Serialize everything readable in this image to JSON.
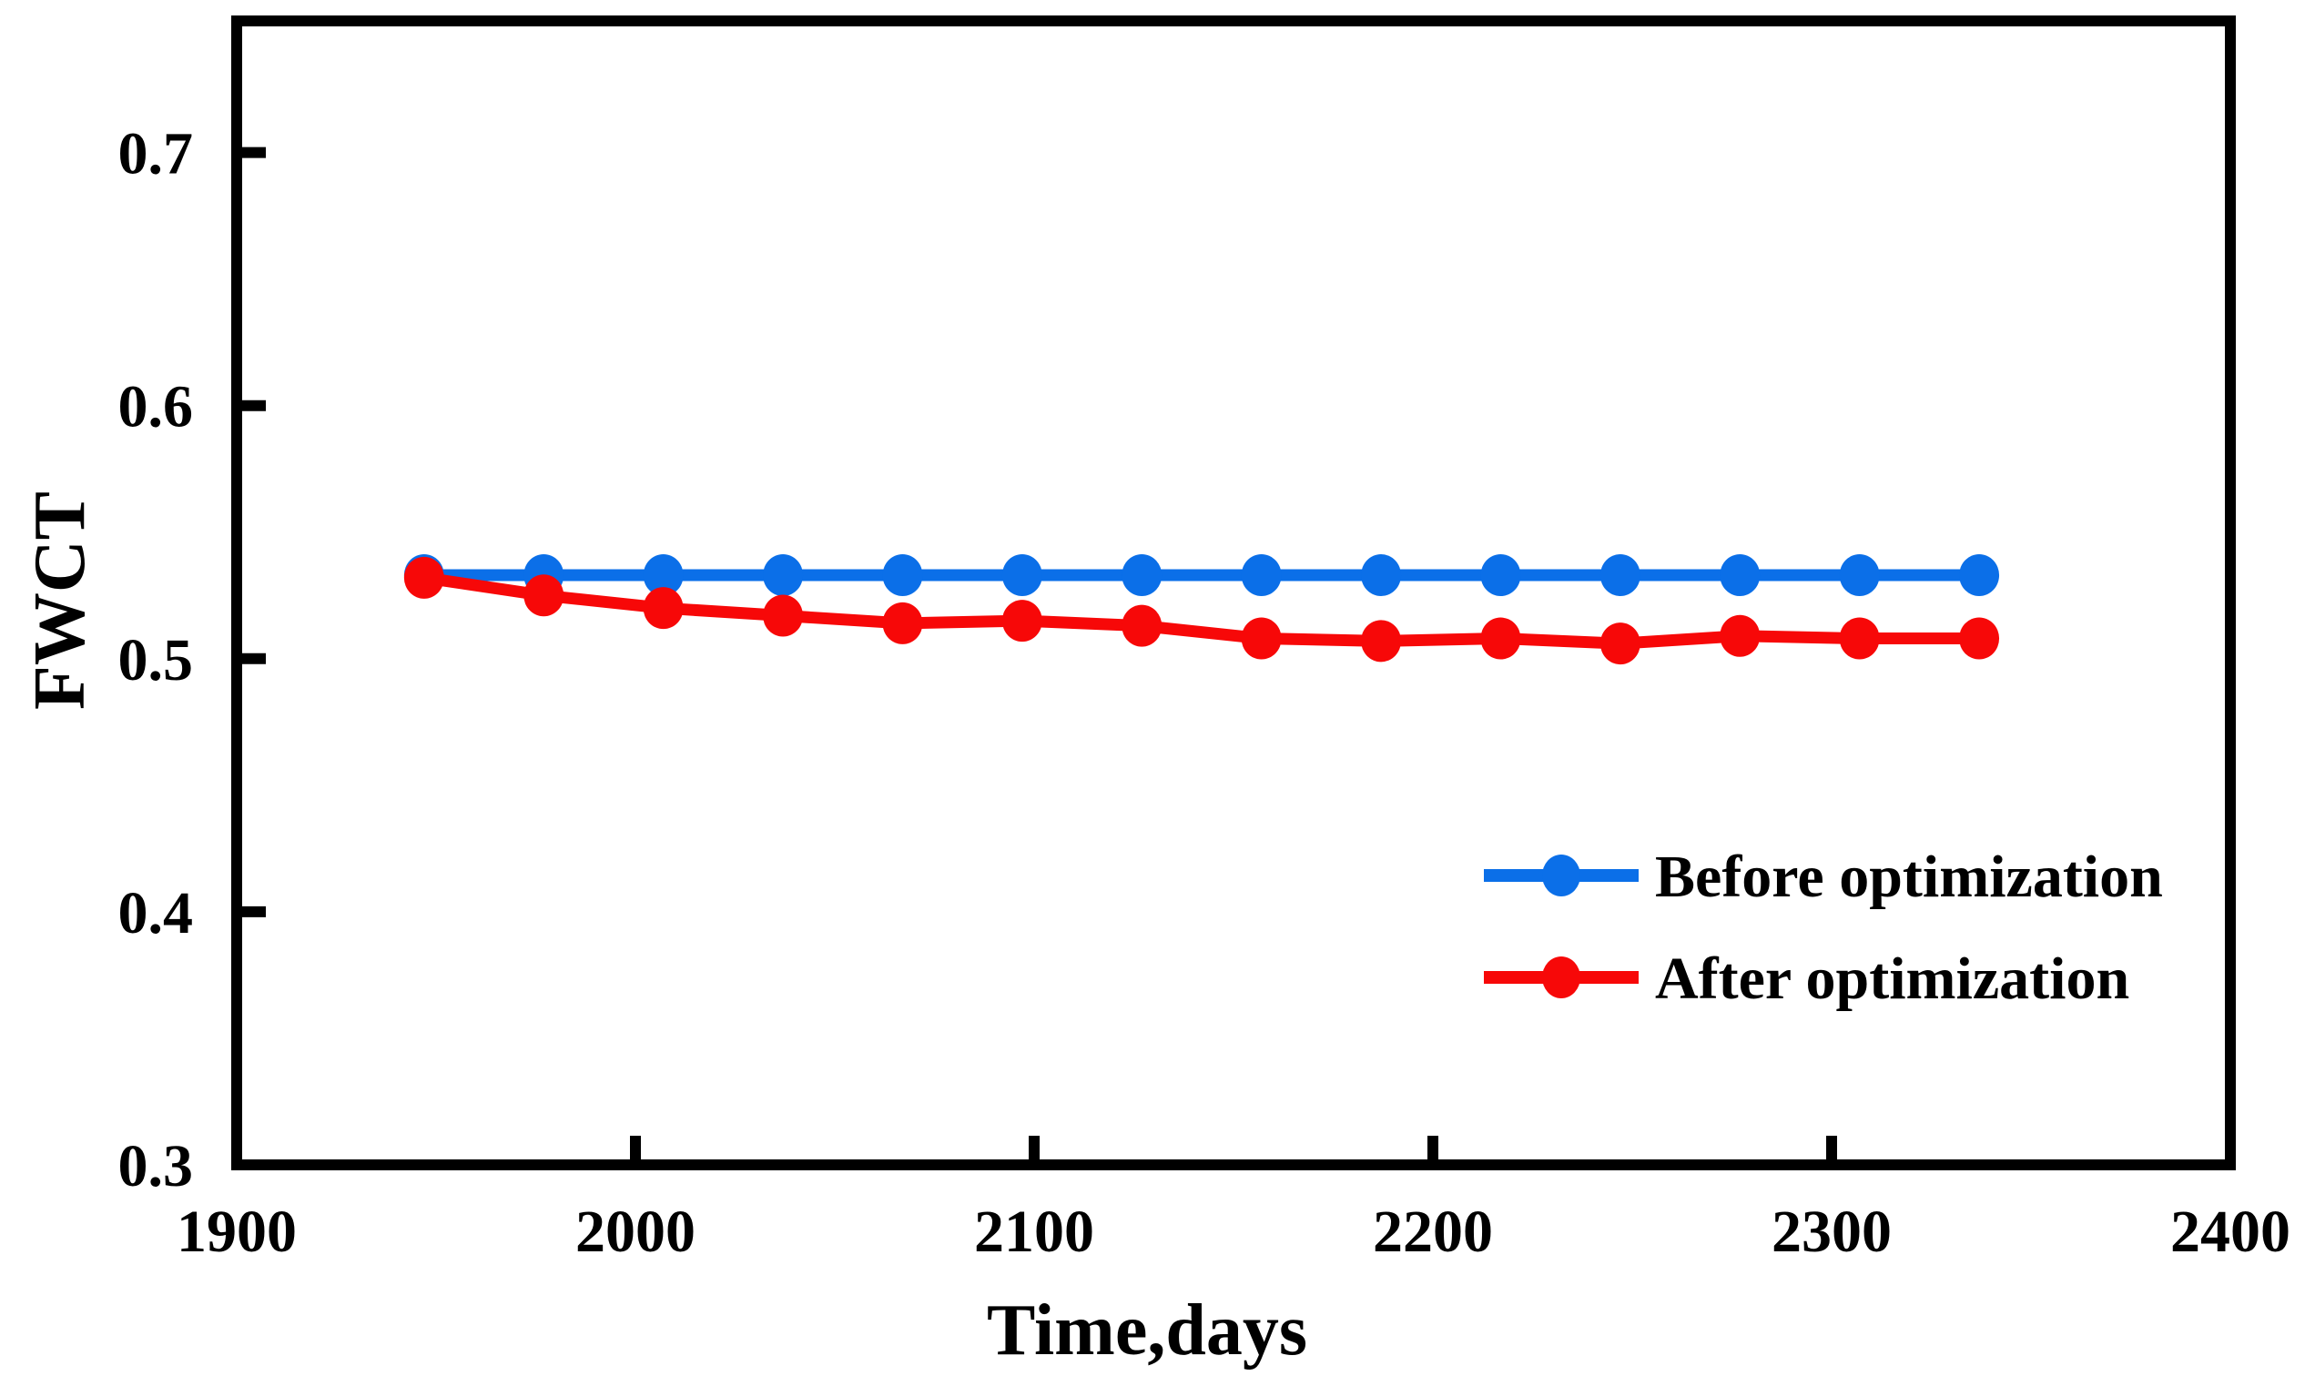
{
  "chart_data": {
    "type": "line",
    "title": "",
    "xlabel": "Time,days",
    "ylabel": "FWCT",
    "x": [
      1947,
      1977,
      2007,
      2037,
      2067,
      2097,
      2127,
      2157,
      2187,
      2217,
      2247,
      2277,
      2307,
      2337
    ],
    "series": [
      {
        "name": "Before optimization",
        "color": "#0b6fe8",
        "values": [
          0.533,
          0.533,
          0.533,
          0.533,
          0.533,
          0.533,
          0.533,
          0.533,
          0.533,
          0.533,
          0.533,
          0.533,
          0.533,
          0.533
        ]
      },
      {
        "name": "After optimization",
        "color": "#f70808",
        "values": [
          0.532,
          0.525,
          0.52,
          0.517,
          0.514,
          0.515,
          0.513,
          0.508,
          0.507,
          0.508,
          0.506,
          0.509,
          0.508,
          0.508
        ]
      }
    ],
    "xlim": [
      1900,
      2400
    ],
    "ylim": [
      0.3,
      0.752
    ],
    "xticks": [
      "1900",
      "2000",
      "2100",
      "2200",
      "2300",
      "2400"
    ],
    "yticks": [
      "0.3",
      "0.4",
      "0.5",
      "0.6",
      "0.7"
    ],
    "xtick_values": [
      1900,
      2000,
      2100,
      2200,
      2300,
      2400
    ],
    "ytick_values": [
      0.3,
      0.4,
      0.5,
      0.6,
      0.7
    ],
    "grid": false,
    "legend_position": "inside-lower-right",
    "marker": "circle",
    "axis_color": "#000000",
    "background_color": "#ffffff"
  }
}
